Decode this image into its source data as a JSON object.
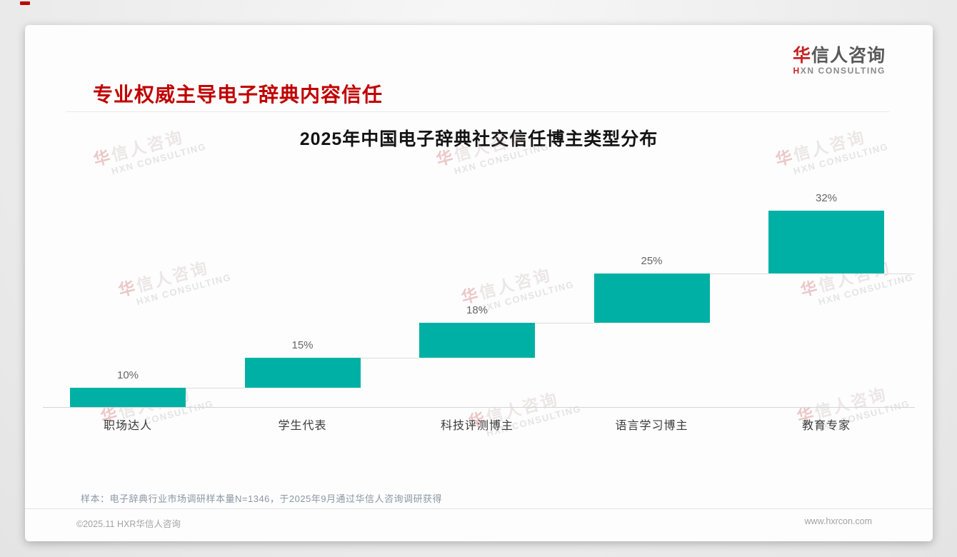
{
  "header": {
    "title": "专业权威主导电子辞典内容信任",
    "logo_cn_accent": "华",
    "logo_cn_rest": "信人咨询",
    "logo_en_accent": "H",
    "logo_en_rest": "XN CONSULTING"
  },
  "watermark": {
    "cn_accent": "华",
    "cn_rest": "信人咨询",
    "en": "HXN CONSULTING"
  },
  "chart_data": {
    "type": "bar",
    "subtype": "waterfall",
    "title": "2025年中国电子辞典社交信任博主类型分布",
    "categories": [
      "职场达人",
      "学生代表",
      "科技评测博主",
      "语言学习博主",
      "教育专家"
    ],
    "values": [
      10,
      15,
      18,
      25,
      32
    ],
    "cumulative": [
      10,
      25,
      43,
      68,
      100
    ],
    "data_labels": [
      "10%",
      "15%",
      "18%",
      "25%",
      "32%"
    ],
    "unit": "%",
    "ylim": [
      0,
      100
    ],
    "grid": false,
    "legend": "none",
    "bar_color": "#00b0a4",
    "connector_color": "#dcdcdc"
  },
  "footnote": "样本：电子辞典行业市场调研样本量N=1346，于2025年9月通过华信人咨询调研获得",
  "footer": {
    "copyright": "©2025.11 HXR华信人咨询",
    "website": "www.hxrcon.com"
  },
  "colors": {
    "accent_red": "#c00000",
    "bar_teal": "#00b0a4"
  }
}
